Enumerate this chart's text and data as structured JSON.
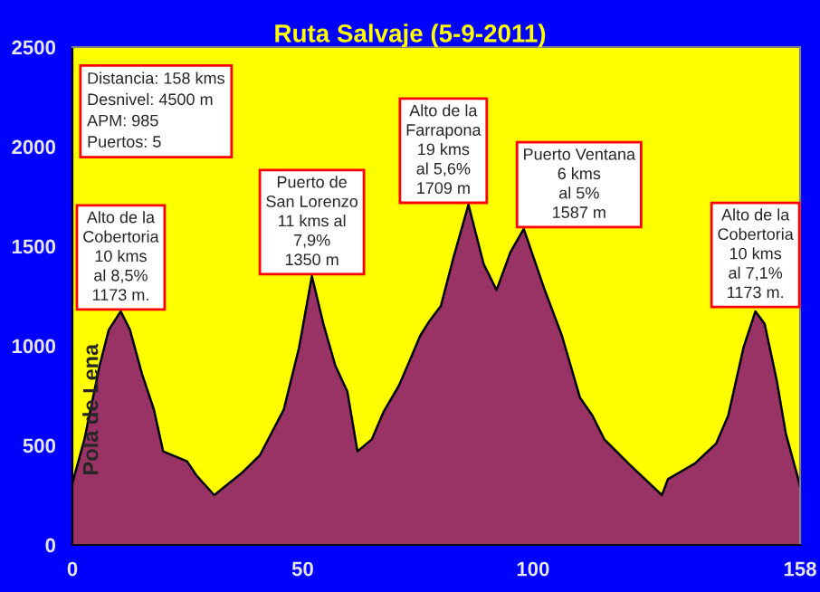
{
  "chart_data": {
    "type": "area",
    "title": "Ruta Salvaje (5-9-2011)",
    "x": [
      0,
      2.6,
      5.9,
      7.9,
      10.5,
      12.5,
      15.1,
      17.7,
      19.7,
      24.9,
      26.9,
      30.8,
      36.7,
      40.7,
      45.9,
      49.2,
      52,
      54.5,
      57.1,
      59.7,
      61.9,
      65,
      67.6,
      70.9,
      73.5,
      75.5,
      77.4,
      80,
      82.7,
      86,
      89.3,
      92.1,
      95.1,
      98,
      102.4,
      106.3,
      110.2,
      112.9,
      115.5,
      120.7,
      128,
      129.3,
      135.2,
      139.8,
      142.4,
      145.7,
      148.3,
      150.3,
      152.9,
      154.9,
      157.5,
      158
    ],
    "series": [
      {
        "color": "#993366",
        "values": [
          310,
          530,
          900,
          1080,
          1173,
          1080,
          860,
          680,
          470,
          420,
          350,
          250,
          360,
          450,
          680,
          990,
          1350,
          1110,
          900,
          770,
          470,
          530,
          670,
          800,
          940,
          1050,
          1120,
          1200,
          1440,
          1709,
          1410,
          1280,
          1470,
          1587,
          1290,
          1050,
          740,
          650,
          530,
          410,
          250,
          330,
          410,
          510,
          650,
          990,
          1173,
          1110,
          830,
          560,
          340,
          290
        ]
      }
    ],
    "xlim": [
      0,
      158
    ],
    "xticks": [
      0,
      50,
      100,
      158
    ],
    "ylim": [
      0,
      2500
    ],
    "yticks": [
      0,
      500,
      1000,
      1500,
      2000,
      2500
    ],
    "annotations": [
      "Distancia: 158 kms\nDesnivel: 4500 m\nAPM: 985\nPuertos: 5",
      {
        "text": "Pola de Lena",
        "x": 0,
        "y": 310
      },
      {
        "text": "Alto de la\nCobertoria\n10 kms\nal 8,5%\n1173 m.",
        "x": 10.5,
        "y": 1173
      },
      {
        "text": "Puerto de\nSan Lorenzo\n11 kms al\n7,9%\n1350 m",
        "x": 52,
        "y": 1350
      },
      {
        "text": "Alto de la\nFarrapona\n19 kms\nal 5,6%\n1709 m",
        "x": 86,
        "y": 1709
      },
      {
        "text": "Puerto Ventana\n6 kms\nal 5%\n1587 m",
        "x": 98,
        "y": 1587
      },
      {
        "text": "Alto de la\nCobertoria\n10 kms\nal 7,1%\n1173 m.",
        "x": 148.3,
        "y": 1173
      }
    ],
    "grid": false,
    "legend": false
  }
}
